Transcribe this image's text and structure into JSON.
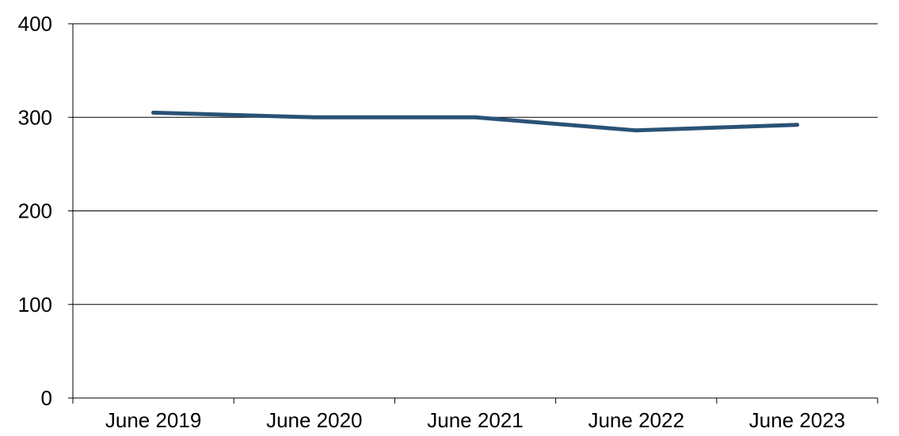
{
  "chart_data": {
    "type": "line",
    "title": "",
    "xlabel": "",
    "ylabel": "",
    "categories": [
      "June 2019",
      "June 2020",
      "June 2021",
      "June 2022",
      "June 2023"
    ],
    "series": [
      {
        "values": [
          305,
          300,
          300,
          286,
          292
        ],
        "color": "#2a5275"
      }
    ],
    "ylim": [
      0,
      400
    ],
    "yticks": [
      0,
      100,
      200,
      300,
      400
    ],
    "grid": true,
    "legend": "none"
  }
}
